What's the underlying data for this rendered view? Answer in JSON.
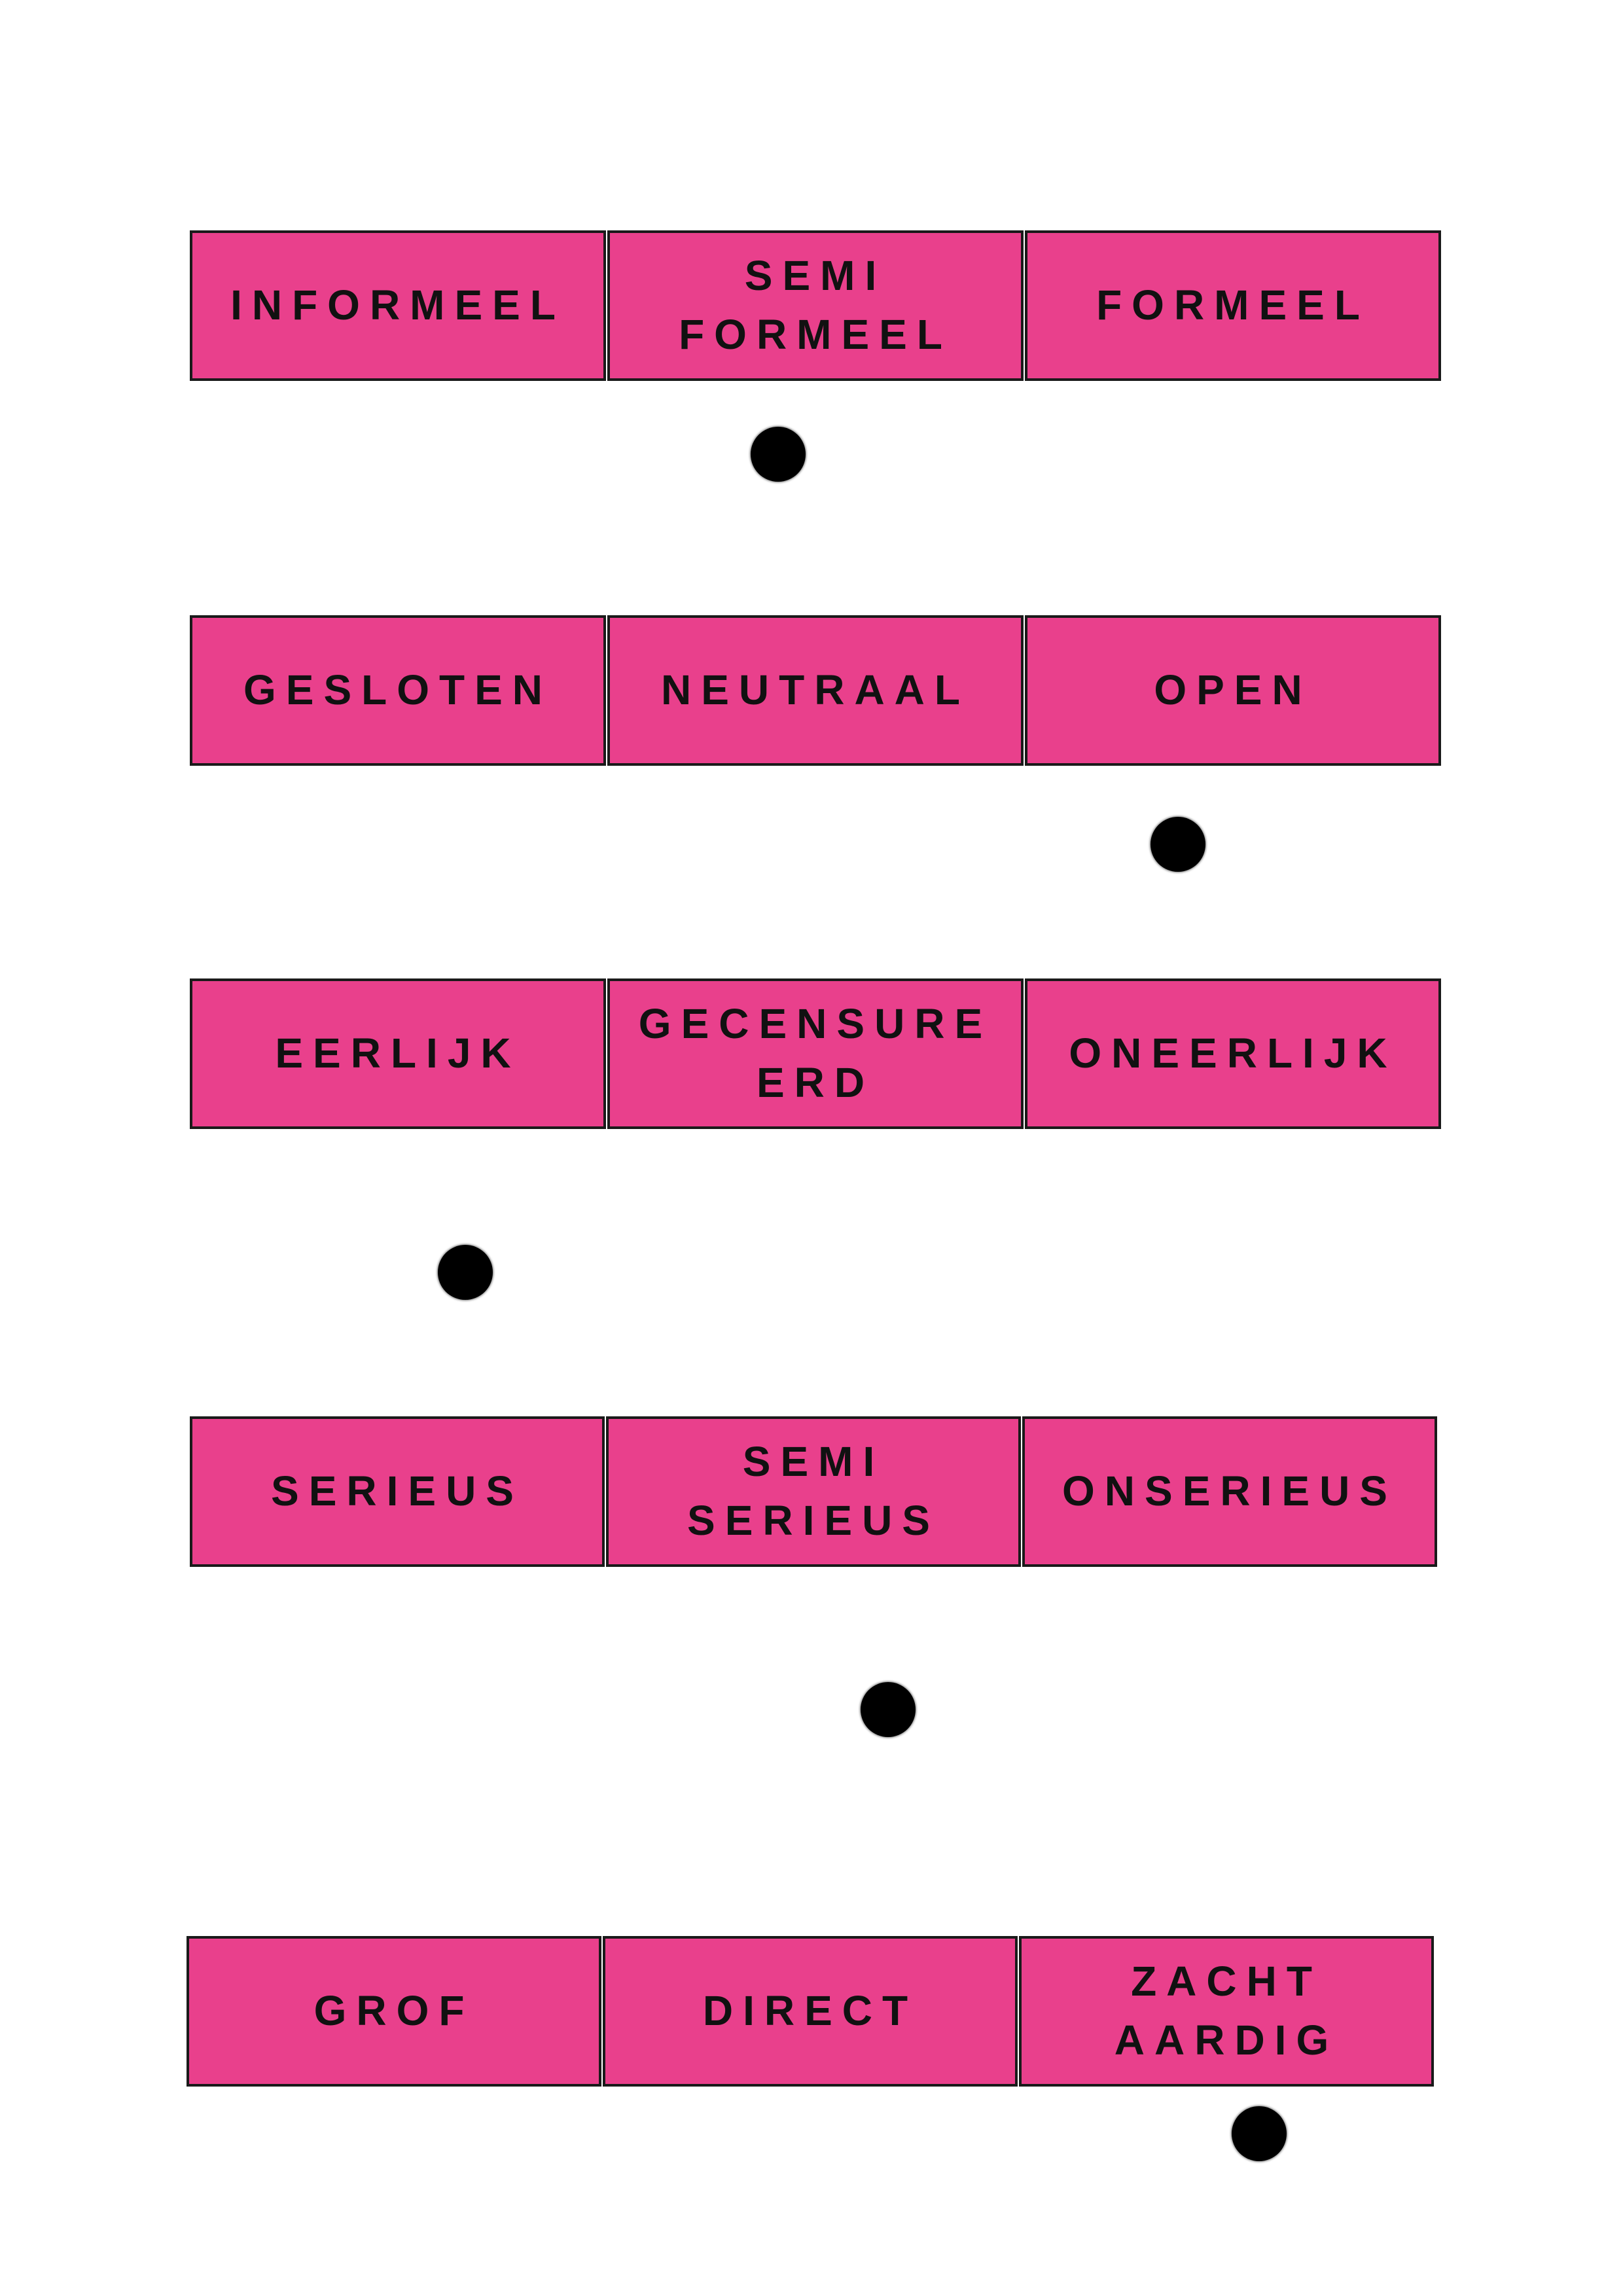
{
  "scales": [
    {
      "labels": [
        "INFORMEEL",
        "SEMI\nFORMEEL",
        "FORMEEL"
      ],
      "marker_value": 0.47
    },
    {
      "labels": [
        "GESLOTEN",
        "NEUTRAAL",
        "OPEN"
      ],
      "marker_value": 0.79
    },
    {
      "labels": [
        "EERLIJK",
        "GECENSURE\nERD",
        "ONEERLIJK"
      ],
      "marker_value": 0.22
    },
    {
      "labels": [
        "SERIEUS",
        "SEMI\nSERIEUS",
        "ONSERIEUS"
      ],
      "marker_value": 0.56
    },
    {
      "labels": [
        "GROF",
        "DIRECT",
        "ZACHT\nAARDIG"
      ],
      "marker_value": 0.86
    }
  ],
  "colors": {
    "cell_fill": "#e9408c",
    "border": "#1a1a1a",
    "marker": "#000000"
  }
}
